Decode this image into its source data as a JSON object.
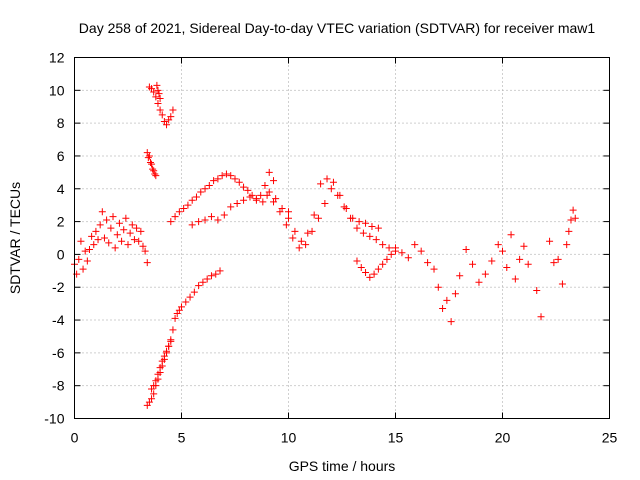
{
  "chart_data": {
    "type": "scatter",
    "title": "Day 258 of 2021, Sidereal Day-to-day VTEC variation (SDTVAR) for receiver maw1",
    "xlabel": "GPS time / hours",
    "ylabel": "SDTVAR / TECUs",
    "xlim": [
      0,
      25
    ],
    "ylim": [
      -10,
      12
    ],
    "xticks": [
      0,
      5,
      10,
      15,
      20,
      25
    ],
    "yticks": [
      -10,
      -8,
      -6,
      -4,
      -2,
      0,
      2,
      4,
      6,
      8,
      10,
      12
    ],
    "x_tick_labels": [
      "0",
      "5",
      "10",
      "15",
      "20",
      "25"
    ],
    "y_tick_labels": [
      "-10",
      "-8",
      "-6",
      "-4",
      "-2",
      "0",
      "2",
      "4",
      "6",
      "8",
      "10",
      "12"
    ],
    "grid": true,
    "marker": "+",
    "color": "#ff0000",
    "series": [
      {
        "name": "cluster-0-2h",
        "x": [
          0.0,
          0.1,
          0.2,
          0.3,
          0.4,
          0.5,
          0.6,
          0.7,
          0.8,
          0.9,
          1.0,
          1.1,
          1.2,
          1.3,
          1.4,
          1.5,
          1.6,
          1.7,
          1.8,
          1.9,
          2.0,
          2.1,
          2.2,
          2.3,
          2.4,
          2.5,
          2.6,
          2.7,
          2.8,
          2.9,
          3.0,
          3.1,
          3.2,
          3.3,
          3.4
        ],
        "y": [
          -0.6,
          -1.2,
          -0.3,
          0.8,
          -0.9,
          0.2,
          -0.4,
          0.3,
          1.1,
          0.6,
          1.4,
          0.9,
          1.8,
          2.6,
          1.0,
          2.1,
          0.7,
          1.6,
          2.3,
          0.4,
          1.2,
          1.9,
          0.8,
          1.5,
          2.2,
          0.6,
          1.3,
          1.8,
          0.9,
          1.6,
          0.8,
          1.4,
          0.5,
          0.2,
          -0.5
        ]
      },
      {
        "name": "arc-upper-steep",
        "x": [
          3.4,
          3.45,
          3.5,
          3.55,
          3.6,
          3.65,
          3.7,
          3.75,
          3.8,
          3.85,
          3.9,
          3.95,
          4.0
        ],
        "y": [
          6.2,
          5.9,
          6.0,
          5.6,
          5.5,
          5.2,
          5.1,
          4.9,
          4.8,
          10.3,
          10.0,
          9.8,
          9.5
        ]
      },
      {
        "name": "arc-upper-top",
        "x": [
          3.5,
          3.6,
          3.7,
          3.8,
          3.9,
          4.0,
          4.1,
          4.2,
          4.3,
          4.4,
          4.5,
          4.6
        ],
        "y": [
          10.2,
          10.1,
          9.9,
          9.6,
          9.2,
          8.8,
          8.5,
          8.1,
          7.9,
          8.2,
          8.4,
          8.8
        ]
      },
      {
        "name": "arc-lower-rising",
        "x": [
          3.4,
          3.5,
          3.6,
          3.7,
          3.8,
          3.9,
          4.0,
          4.1,
          4.2,
          4.3,
          4.4,
          4.5,
          4.6,
          4.7,
          4.8,
          4.9,
          5.0,
          5.2,
          5.4,
          5.6,
          5.8,
          6.0,
          6.2,
          6.4,
          6.6,
          6.8
        ],
        "y": [
          -9.2,
          -9.0,
          -8.8,
          -8.5,
          -8.0,
          -7.6,
          -7.2,
          -6.8,
          -6.4,
          -6.0,
          -5.6,
          -5.2,
          -4.6,
          -3.9,
          -3.6,
          -3.4,
          -3.2,
          -2.9,
          -2.6,
          -2.3,
          -1.9,
          -1.7,
          -1.5,
          -1.3,
          -1.2,
          -1.0
        ]
      },
      {
        "name": "arc-lower-inner",
        "x": [
          3.6,
          3.7,
          3.8,
          3.9,
          4.0,
          4.1,
          4.2,
          4.3,
          4.4,
          4.5
        ],
        "y": [
          -8.2,
          -8.0,
          -7.7,
          -7.3,
          -6.9,
          -6.5,
          -6.2,
          -5.9,
          -5.6,
          -5.3
        ]
      },
      {
        "name": "band-main-rise",
        "x": [
          4.5,
          4.7,
          4.9,
          5.1,
          5.3,
          5.5,
          5.7,
          5.9,
          6.1,
          6.3,
          6.5,
          6.7,
          6.9,
          7.1,
          7.3,
          7.5,
          7.7,
          7.9,
          8.1,
          8.3,
          8.5,
          8.7,
          8.9,
          9.1,
          9.3
        ],
        "y": [
          2.0,
          2.3,
          2.6,
          2.8,
          3.0,
          3.3,
          3.5,
          3.8,
          4.0,
          4.2,
          4.5,
          4.6,
          4.8,
          4.9,
          4.8,
          4.6,
          4.4,
          4.1,
          3.9,
          3.6,
          3.3,
          3.6,
          4.2,
          5.0,
          4.5
        ]
      },
      {
        "name": "band-secondary",
        "x": [
          5.5,
          5.8,
          6.1,
          6.4,
          6.7,
          7.0,
          7.3,
          7.6,
          7.9,
          8.2,
          8.5,
          8.8,
          9.1,
          9.4,
          9.7,
          10.0
        ],
        "y": [
          1.8,
          2.0,
          2.1,
          2.3,
          2.1,
          2.4,
          2.9,
          3.1,
          3.3,
          3.5,
          3.4,
          3.2,
          3.8,
          3.4,
          2.8,
          2.6
        ]
      },
      {
        "name": "band-9-14h",
        "x": [
          9.0,
          9.3,
          9.6,
          9.9,
          10.2,
          10.5,
          10.8,
          11.1,
          11.4,
          11.7,
          12.0,
          12.3,
          12.6,
          12.9,
          13.2,
          13.5,
          13.8,
          14.1,
          14.4,
          14.7,
          15.0
        ],
        "y": [
          3.6,
          3.2,
          2.6,
          1.8,
          1.0,
          0.4,
          0.6,
          1.4,
          2.2,
          3.1,
          4.0,
          3.6,
          2.9,
          2.2,
          1.6,
          1.3,
          1.1,
          0.9,
          0.6,
          0.4,
          0.2
        ]
      },
      {
        "name": "band-10-13h-upper",
        "x": [
          10.0,
          10.3,
          10.6,
          10.9,
          11.2,
          11.5,
          11.8,
          12.1,
          12.4,
          12.7,
          13.0,
          13.3,
          13.6,
          13.9,
          14.2
        ],
        "y": [
          2.2,
          1.4,
          0.8,
          1.3,
          2.4,
          4.3,
          4.6,
          4.4,
          3.6,
          2.8,
          2.2,
          2.0,
          1.9,
          1.7,
          1.6
        ]
      },
      {
        "name": "band-13-15h-lower",
        "x": [
          13.2,
          13.4,
          13.6,
          13.8,
          14.0,
          14.2,
          14.4,
          14.6,
          14.8
        ],
        "y": [
          -0.4,
          -0.8,
          -1.1,
          -1.4,
          -1.2,
          -0.9,
          -0.6,
          -0.3,
          0.0
        ]
      },
      {
        "name": "cluster-15-20h",
        "x": [
          15.0,
          15.3,
          15.6,
          15.9,
          16.2,
          16.5,
          16.8,
          17.0,
          17.2,
          17.4,
          17.6,
          17.8,
          18.0,
          18.3,
          18.6,
          18.9,
          19.2,
          19.5,
          19.8
        ],
        "y": [
          0.4,
          0.1,
          -0.2,
          0.6,
          0.2,
          -0.5,
          -0.9,
          -2.0,
          -3.3,
          -2.8,
          -4.1,
          -2.4,
          -1.3,
          0.3,
          -0.6,
          -1.7,
          -1.2,
          -0.4,
          0.6
        ]
      },
      {
        "name": "cluster-20-23.5h",
        "x": [
          20.0,
          20.2,
          20.4,
          20.6,
          20.8,
          21.0,
          21.2,
          21.6,
          21.8,
          22.2,
          22.4,
          22.6,
          22.8,
          23.0,
          23.1,
          23.2,
          23.3,
          23.4
        ],
        "y": [
          0.2,
          -0.8,
          1.2,
          -1.5,
          -0.3,
          0.5,
          -0.6,
          -2.2,
          -3.8,
          0.8,
          -0.5,
          -0.3,
          -1.8,
          0.6,
          1.4,
          2.1,
          2.7,
          2.2
        ]
      }
    ]
  }
}
